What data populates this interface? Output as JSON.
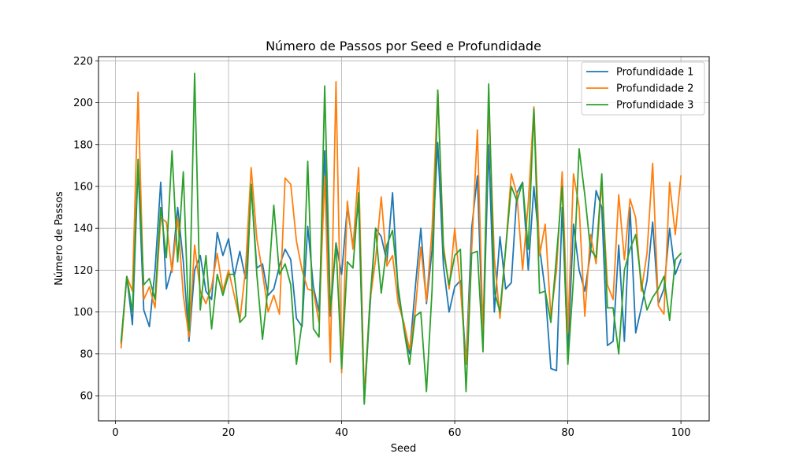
{
  "chart_data": {
    "type": "line",
    "title": "Número de Passos por Seed e Profundidade",
    "xlabel": "Seed",
    "ylabel": "Número de Passos",
    "xlim": [
      -3,
      105
    ],
    "ylim": [
      48,
      222
    ],
    "xticks": [
      0,
      20,
      40,
      60,
      80,
      100
    ],
    "yticks": [
      60,
      80,
      100,
      120,
      140,
      160,
      180,
      200,
      220
    ],
    "grid": true,
    "legend_position": "top-right",
    "series": [
      {
        "name": "Profundidade 1",
        "color": "#1f77b4",
        "values": [
          85,
          117,
          94,
          170,
          101,
          93,
          120,
          162,
          111,
          121,
          150,
          124,
          86,
          120,
          127,
          110,
          106,
          138,
          127,
          135,
          117,
          129,
          116,
          160,
          121,
          123,
          108,
          111,
          122,
          130,
          125,
          97,
          93,
          141,
          112,
          100,
          177,
          98,
          133,
          118,
          150,
          132,
          152,
          57,
          102,
          140,
          136,
          124,
          157,
          109,
          93,
          80,
          111,
          140,
          104,
          130,
          181,
          122,
          100,
          112,
          115,
          76,
          140,
          165,
          85,
          180,
          100,
          136,
          111,
          114,
          157,
          162,
          120,
          160,
          131,
          110,
          73,
          72,
          150,
          80,
          142,
          120,
          110,
          128,
          158,
          150,
          84,
          86,
          132,
          86,
          150,
          90,
          102,
          115,
          143,
          104,
          111,
          140,
          118,
          125
        ]
      },
      {
        "name": "Profundidade 2",
        "color": "#ff7f0e",
        "values": [
          83,
          117,
          110,
          205,
          106,
          112,
          102,
          145,
          143,
          119,
          145,
          108,
          88,
          132,
          110,
          104,
          112,
          128,
          110,
          120,
          108,
          96,
          120,
          169,
          135,
          119,
          100,
          108,
          99,
          164,
          161,
          134,
          120,
          111,
          110,
          95,
          165,
          76,
          210,
          71,
          153,
          130,
          169,
          60,
          105,
          125,
          155,
          122,
          127,
          104,
          95,
          82,
          100,
          131,
          105,
          140,
          206,
          132,
          111,
          140,
          112,
          75,
          130,
          187,
          90,
          200,
          126,
          97,
          130,
          166,
          156,
          120,
          152,
          198,
          127,
          142,
          98,
          120,
          167,
          90,
          166,
          150,
          98,
          137,
          123,
          162,
          113,
          106,
          156,
          125,
          154,
          145,
          110,
          128,
          171,
          103,
          99,
          162,
          137,
          165
        ]
      },
      {
        "name": "Profundidade 3",
        "color": "#2ca02c",
        "values": [
          86,
          117,
          100,
          173,
          113,
          116,
          106,
          150,
          126,
          177,
          124,
          167,
          91,
          214,
          101,
          127,
          92,
          118,
          108,
          118,
          118,
          95,
          98,
          161,
          118,
          87,
          112,
          151,
          118,
          123,
          113,
          75,
          95,
          172,
          92,
          88,
          208,
          101,
          133,
          73,
          124,
          121,
          157,
          56,
          105,
          140,
          109,
          132,
          139,
          112,
          92,
          75,
          98,
          100,
          62,
          111,
          206,
          129,
          113,
          127,
          130,
          62,
          128,
          129,
          81,
          209,
          110,
          100,
          130,
          160,
          153,
          162,
          130,
          197,
          109,
          110,
          95,
          127,
          160,
          75,
          116,
          178,
          156,
          130,
          126,
          166,
          102,
          102,
          80,
          120,
          130,
          137,
          114,
          101,
          107,
          111,
          117,
          96,
          125,
          128
        ]
      }
    ]
  }
}
